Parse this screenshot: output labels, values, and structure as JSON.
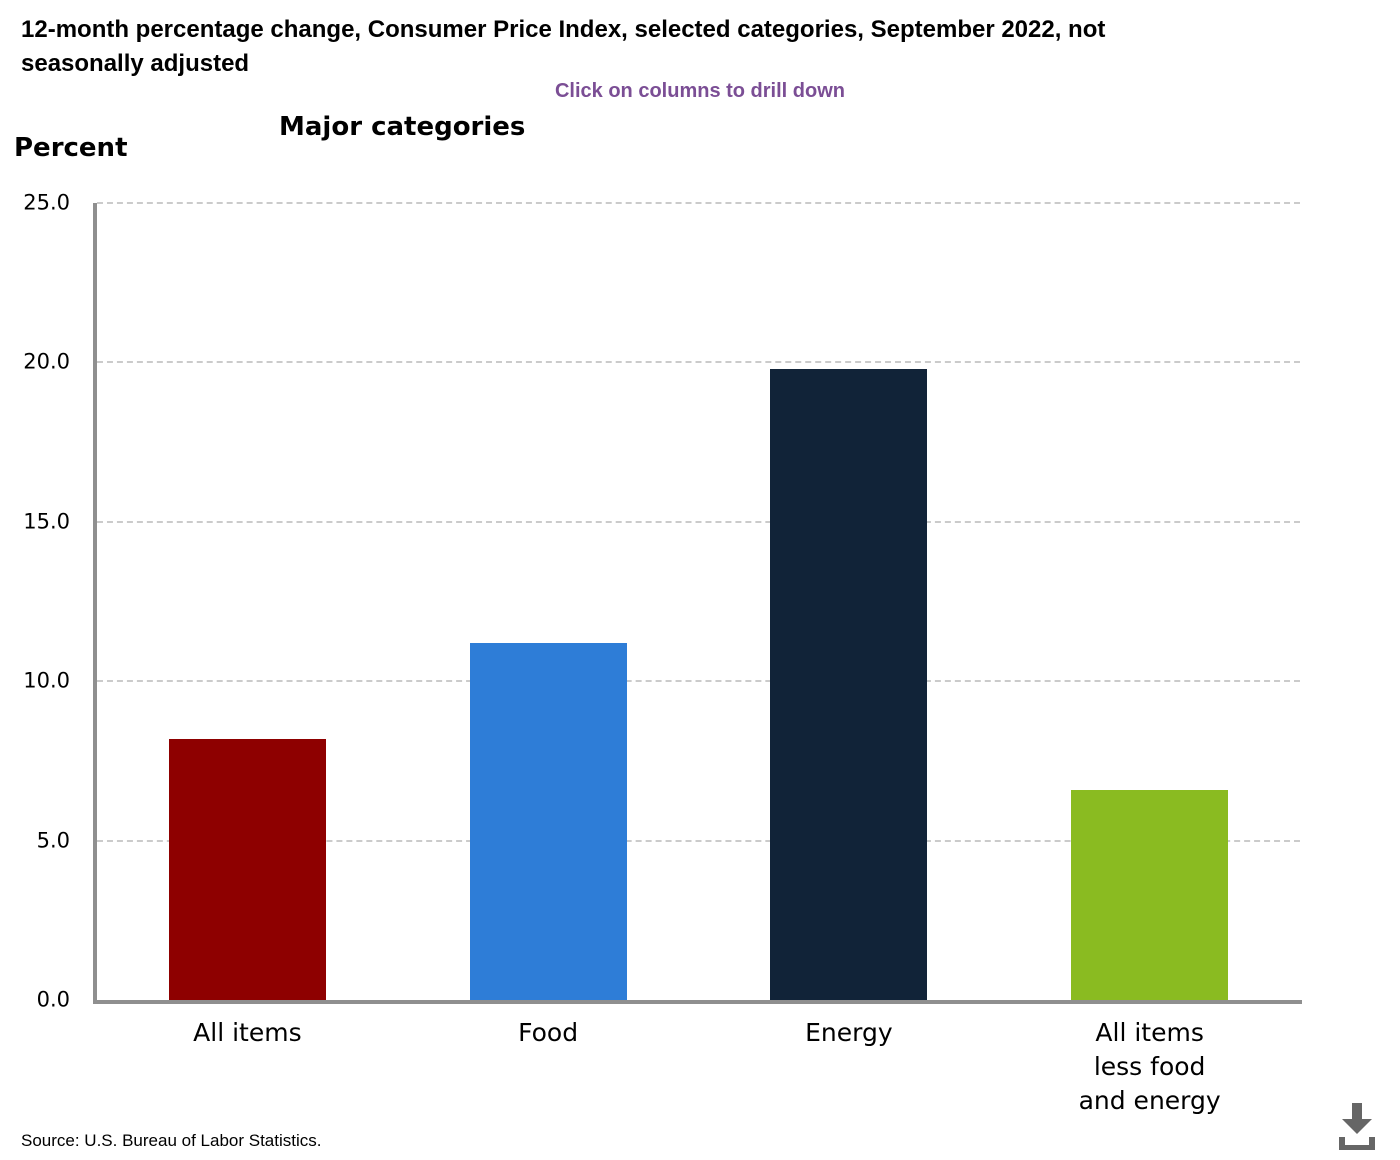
{
  "header": {
    "title": "12-month percentage change, Consumer Price Index, selected categories, September 2022, not seasonally adjusted",
    "title_lines": [
      "12-month percentage change, Consumer Price Index, selected categories, September 2022, not",
      "seasonally adjusted"
    ],
    "subtitle": "Click on columns to drill down",
    "chart_title": "Major categories",
    "y_axis_title": "Percent"
  },
  "chart_data": {
    "type": "bar",
    "title": "Major categories",
    "xlabel": "",
    "ylabel": "Percent",
    "ylim": [
      0,
      25
    ],
    "ytick_labels": [
      "25.0",
      "20.0",
      "15.0",
      "10.0",
      "5.0",
      "0.0"
    ],
    "grid": "horizontal-dashed",
    "legend_position": "none",
    "categories": [
      "All items",
      "Food",
      "Energy",
      "All items less food and energy"
    ],
    "category_lines": [
      [
        "All items"
      ],
      [
        "Food"
      ],
      [
        "Energy"
      ],
      [
        "All items",
        "less food",
        "and energy"
      ]
    ],
    "values": [
      8.2,
      11.2,
      19.8,
      6.6
    ],
    "bar_colors": [
      "#8e0000",
      "#2e7dd7",
      "#112338",
      "#8abb21"
    ]
  },
  "footer": {
    "source": "Source: U.S. Bureau of Labor Statistics."
  },
  "icons": {
    "download": "download-icon"
  },
  "colors": {
    "subtitle_text": "#7b4e95",
    "axis_line": "#8f8f8f",
    "gridline": "#cbcbcb",
    "download_icon": "#666666"
  }
}
